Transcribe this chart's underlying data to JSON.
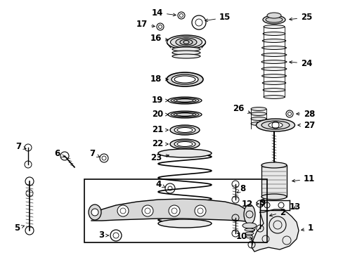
{
  "background_color": "#ffffff",
  "fig_width": 4.89,
  "fig_height": 3.6,
  "dpi": 100,
  "line_color": "#000000",
  "label_fontsize": 8.5,
  "label_fontweight": "bold",
  "label_fontfamily": "DejaVu Sans"
}
